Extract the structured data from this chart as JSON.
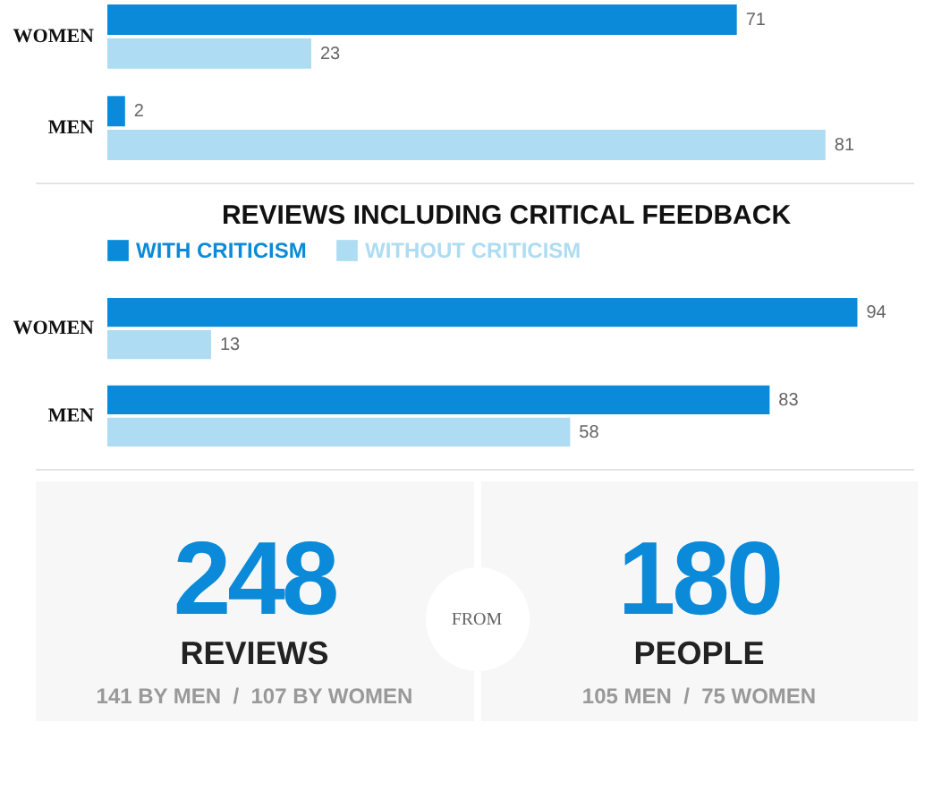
{
  "chart_data": [
    {
      "type": "bar",
      "orientation": "horizontal",
      "categories": [
        "WOMEN",
        "MEN"
      ],
      "series": [
        {
          "color": "#0a8ad8",
          "values": [
            71,
            2
          ]
        },
        {
          "color": "#aedcf2",
          "values": [
            23,
            81
          ]
        }
      ],
      "tick_labels": "y",
      "data_labels": true,
      "legend": false
    },
    {
      "type": "bar",
      "orientation": "horizontal",
      "title": "REVIEWS INCLUDING CRITICAL FEEDBACK",
      "categories": [
        "WOMEN",
        "MEN"
      ],
      "series": [
        {
          "name": "WITH CRITICISM",
          "color": "#0a8ad8",
          "values": [
            94,
            83
          ]
        },
        {
          "name": "WITHOUT CRITICISM",
          "color": "#aedcf2",
          "values": [
            13,
            58
          ]
        }
      ],
      "tick_labels": "y",
      "data_labels": true,
      "legend": "top"
    },
    {
      "type": "other",
      "annotations": [
        "248",
        "REVIEWS",
        "141 BY MEN  /  107 BY WOMEN",
        "FROM",
        "180",
        "PEOPLE",
        "105 MEN  /  75 WOMEN"
      ]
    }
  ]
}
